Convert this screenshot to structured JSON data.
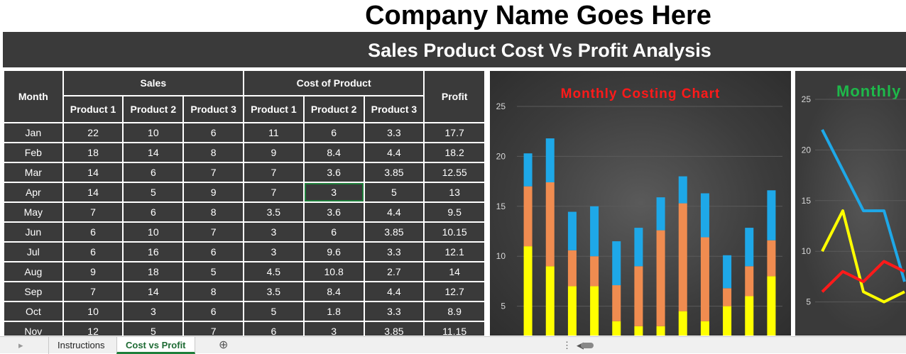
{
  "company_title": "Company Name Goes Here",
  "banner_title": "Sales Product Cost Vs Profit Analysis",
  "table": {
    "month_header": "Month",
    "sales_header": "Sales",
    "cost_header": "Cost of Product",
    "profit_header": "Profit",
    "product_headers": [
      "Product 1",
      "Product 2",
      "Product 3"
    ],
    "rows": [
      [
        "Jan",
        "22",
        "10",
        "6",
        "11",
        "6",
        "3.3",
        "17.7"
      ],
      [
        "Feb",
        "18",
        "14",
        "8",
        "9",
        "8.4",
        "4.4",
        "18.2"
      ],
      [
        "Mar",
        "14",
        "6",
        "7",
        "7",
        "3.6",
        "3.85",
        "12.55"
      ],
      [
        "Apr",
        "14",
        "5",
        "9",
        "7",
        "3",
        "5",
        "13"
      ],
      [
        "May",
        "7",
        "6",
        "8",
        "3.5",
        "3.6",
        "4.4",
        "9.5"
      ],
      [
        "Jun",
        "6",
        "10",
        "7",
        "3",
        "6",
        "3.85",
        "10.15"
      ],
      [
        "Jul",
        "6",
        "16",
        "6",
        "3",
        "9.6",
        "3.3",
        "12.1"
      ],
      [
        "Aug",
        "9",
        "18",
        "5",
        "4.5",
        "10.8",
        "2.7",
        "14"
      ],
      [
        "Sep",
        "7",
        "14",
        "8",
        "3.5",
        "8.4",
        "4.4",
        "12.7"
      ],
      [
        "Oct",
        "10",
        "3",
        "6",
        "5",
        "1.8",
        "3.3",
        "8.9"
      ],
      [
        "Nov",
        "12",
        "5",
        "7",
        "6",
        "3",
        "3.85",
        "11.15"
      ]
    ],
    "selected_cell": "Apr / Cost Product 2"
  },
  "chart_data": [
    {
      "type": "bar",
      "title": "Monthly Costing Chart",
      "stacked": true,
      "ylim": [
        0,
        25
      ],
      "yticks": [
        5,
        10,
        15,
        20,
        25
      ],
      "grid": true,
      "series": [
        {
          "color": "#ffff00",
          "values": [
            11,
            9,
            7,
            7,
            3.5,
            3,
            3,
            4.5,
            3.5,
            5,
            6,
            8
          ]
        },
        {
          "color": "#f08c50",
          "values": [
            6,
            8.4,
            3.6,
            3,
            3.6,
            6,
            9.6,
            10.8,
            8.4,
            1.8,
            3,
            3.6
          ]
        },
        {
          "color": "#1ea8e8",
          "values": [
            3.3,
            4.4,
            3.85,
            5,
            4.4,
            3.85,
            3.3,
            2.7,
            4.4,
            3.3,
            3.85,
            5
          ]
        }
      ]
    },
    {
      "type": "line",
      "title": "Monthly",
      "ylim": [
        0,
        25
      ],
      "yticks": [
        5,
        10,
        15,
        20,
        25
      ],
      "grid": true,
      "series": [
        {
          "color": "#1ea8e8",
          "values": [
            22,
            18,
            14,
            14,
            7
          ]
        },
        {
          "color": "#ffff00",
          "values": [
            10,
            14,
            6,
            5,
            6
          ]
        },
        {
          "color": "#ff1a1a",
          "values": [
            6,
            8,
            7,
            9,
            8
          ]
        }
      ]
    }
  ],
  "tabs": {
    "sheet1": "Instructions",
    "sheet2": "Cost vs Profit",
    "add_icon": "plus-circle-icon",
    "nav_icon": "triangle-left-icon"
  },
  "colors": {
    "header_bg": "#3a3a3a",
    "active_tab": "#1e7e3a"
  }
}
